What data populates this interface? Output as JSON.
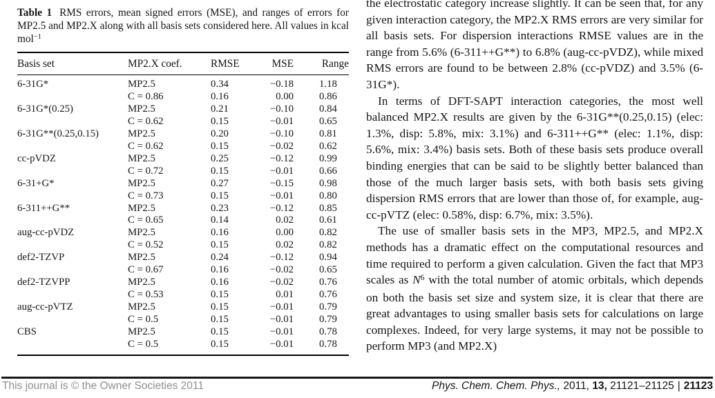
{
  "table": {
    "caption_parts": [
      {
        "text": "Table 1",
        "style": "blabel",
        "name": "table-label"
      },
      {
        "text": "RMS errors, mean signed errors (MSE), and ranges of errors for MP2.5 and MP2.X along with all basis sets considered here. All values in kcal mol",
        "style": "",
        "name": "caption-text"
      },
      {
        "text": "−1",
        "style": "sup",
        "name": "caption-superscript"
      }
    ],
    "columns": [
      "Basis set",
      "MP2.X coef.",
      "RMSE",
      "MSE",
      "Range"
    ],
    "rows": [
      {
        "basis_set": "6-31G*",
        "coef": "MP2.5",
        "rmse": "0.34",
        "mse": "−0.18",
        "range": "1.18"
      },
      {
        "basis_set": "",
        "coef": "C = 0.86",
        "rmse": "0.16",
        "mse": "0.00",
        "range": "0.86"
      },
      {
        "basis_set": "6-31G*(0.25)",
        "coef": "MP2.5",
        "rmse": "0.21",
        "mse": "−0.10",
        "range": "0.84"
      },
      {
        "basis_set": "",
        "coef": "C = 0.62",
        "rmse": "0.15",
        "mse": "−0.01",
        "range": "0.65"
      },
      {
        "basis_set": "6-31G**(0.25,0.15)",
        "coef": "MP2.5",
        "rmse": "0.20",
        "mse": "−0.10",
        "range": "0.81"
      },
      {
        "basis_set": "",
        "coef": "C = 0.62",
        "rmse": "0.15",
        "mse": "−0.02",
        "range": "0.62"
      },
      {
        "basis_set": "cc-pVDZ",
        "coef": "MP2.5",
        "rmse": "0.25",
        "mse": "−0.12",
        "range": "0.99"
      },
      {
        "basis_set": "",
        "coef": "C = 0.72",
        "rmse": "0.15",
        "mse": "−0.01",
        "range": "0.66"
      },
      {
        "basis_set": "6-31+G*",
        "coef": "MP2.5",
        "rmse": "0.27",
        "mse": "−0.15",
        "range": "0.98"
      },
      {
        "basis_set": "",
        "coef": "C = 0.73",
        "rmse": "0.15",
        "mse": "−0.01",
        "range": "0.80"
      },
      {
        "basis_set": "6-311++G**",
        "coef": "MP2.5",
        "rmse": "0.23",
        "mse": "−0.12",
        "range": "0.85"
      },
      {
        "basis_set": "",
        "coef": "C = 0.65",
        "rmse": "0.14",
        "mse": "0.02",
        "range": "0.61"
      },
      {
        "basis_set": "aug-cc-pVDZ",
        "coef": "MP2.5",
        "rmse": "0.16",
        "mse": "0.00",
        "range": "0.82"
      },
      {
        "basis_set": "",
        "coef": "C = 0.52",
        "rmse": "0.15",
        "mse": "0.02",
        "range": "0.82"
      },
      {
        "basis_set": "def2-TZVP",
        "coef": "MP2.5",
        "rmse": "0.24",
        "mse": "−0.12",
        "range": "0.94"
      },
      {
        "basis_set": "",
        "coef": "C = 0.67",
        "rmse": "0.16",
        "mse": "−0.02",
        "range": "0.65"
      },
      {
        "basis_set": "def2-TZVPP",
        "coef": "MP2.5",
        "rmse": "0.16",
        "mse": "−0.02",
        "range": "0.76"
      },
      {
        "basis_set": "",
        "coef": "C = 0.53",
        "rmse": "0.15",
        "mse": "0.01",
        "range": "0.76"
      },
      {
        "basis_set": "aug-cc-pVTZ",
        "coef": "MP2.5",
        "rmse": "0.15",
        "mse": "−0.01",
        "range": "0.79"
      },
      {
        "basis_set": "",
        "coef": "C = 0.5",
        "rmse": "0.15",
        "mse": "−0.01",
        "range": "0.79"
      },
      {
        "basis_set": "CBS",
        "coef": "MP2.5",
        "rmse": "0.15",
        "mse": "−0.01",
        "range": "0.78"
      },
      {
        "basis_set": "",
        "coef": "C = 0.5",
        "rmse": "0.15",
        "mse": "−0.01",
        "range": "0.78"
      }
    ]
  },
  "article": {
    "paragraphs": [
      {
        "indent": false,
        "parts": [
          {
            "text": "the electrostatic category increase slightly. It can be seen that, for any given interaction category, the MP2.X RMS errors are very similar for all basis sets. For dispersion interactions RMSE values are in the range from 5.6% (6-311++G**) to 6.8% (aug-cc-pVDZ), while mixed RMS errors are found to be between 2.8% (cc-pVDZ) and 3.5% (6-31G*).",
            "style": ""
          }
        ]
      },
      {
        "indent": true,
        "parts": [
          {
            "text": "In terms of DFT-SAPT interaction categories, the most well balanced MP2.X results are given by the 6-31G**(0.25,0.15) (elec: 1.3%, disp: 5.8%, mix: 3.1%) and 6-311++G** (elec: 1.1%, disp: 5.6%, mix: 3.4%) basis sets. Both of these basis sets produce overall binding energies that can be said to be slightly better balanced than those of the much larger basis sets, with both basis sets giving dispersion RMS errors that are lower than those of, for example, aug-cc-pVTZ (elec: 0.58%, disp: 6.7%, mix: 3.5%).",
            "style": ""
          }
        ]
      },
      {
        "indent": true,
        "parts": [
          {
            "text": "The use of smaller basis sets in the MP3, MP2.5, and MP2.X methods has a dramatic effect on the computational resources and time required to perform a given calculation. Given the fact that MP3 scales as ",
            "style": ""
          },
          {
            "text": "N",
            "style": "i",
            "name": "math-variable"
          },
          {
            "text": "6",
            "style": "sup",
            "name": "math-exponent"
          },
          {
            "text": " with the total number of atomic orbitals, which depends on both the basis set size and system size, it is clear that there are great advantages to using smaller basis sets for calculations on large complexes. Indeed, for very large systems, it may not be possible to perform MP3 (and MP2.X)",
            "style": ""
          }
        ]
      }
    ]
  },
  "footer": {
    "left": "This journal is © the Owner Societies 2011",
    "citation_parts": [
      {
        "text": "Phys. Chem. Chem. Phys.,",
        "style": "i",
        "name": "journal-name"
      },
      {
        "text": " 2011, ",
        "style": "",
        "name": "citation-year"
      },
      {
        "text": "13,",
        "style": "b",
        "name": "citation-volume"
      },
      {
        "text": " 21121–21125",
        "style": "",
        "name": "citation-pages"
      },
      {
        "text": "|",
        "style": "sep",
        "name": "citation-separator"
      },
      {
        "text": "21123",
        "style": "b",
        "name": "page-number"
      }
    ]
  }
}
